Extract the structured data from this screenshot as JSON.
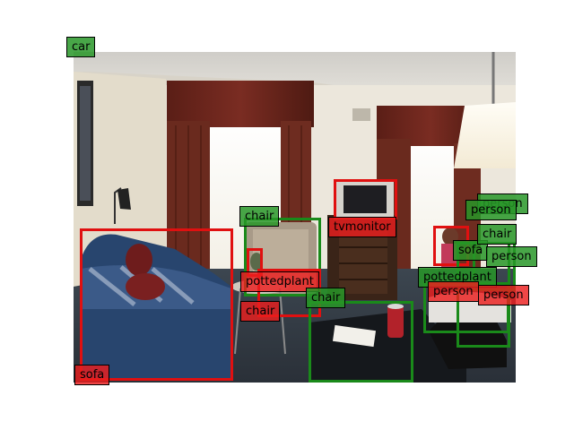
{
  "scene": {
    "colors": {
      "red": "#e01010",
      "green": "#1a8a1a"
    }
  },
  "detections": [
    {
      "label": "car",
      "color": "green"
    },
    {
      "label": "sofa",
      "color": "red"
    },
    {
      "label": "chair",
      "color": "green"
    },
    {
      "label": "tvmonitor",
      "color": "red"
    },
    {
      "label": "pottedplant",
      "color": "red"
    },
    {
      "label": "chair",
      "color": "red"
    },
    {
      "label": "chair",
      "color": "green"
    },
    {
      "label": "sofa",
      "color": "green"
    },
    {
      "label": "pottedplant",
      "color": "green"
    },
    {
      "label": "person",
      "color": "red"
    },
    {
      "label": "person",
      "color": "red"
    },
    {
      "label": "person",
      "color": "green"
    },
    {
      "label": "person",
      "color": "green"
    },
    {
      "label": "chair",
      "color": "green"
    },
    {
      "label": "person",
      "color": "green"
    }
  ]
}
